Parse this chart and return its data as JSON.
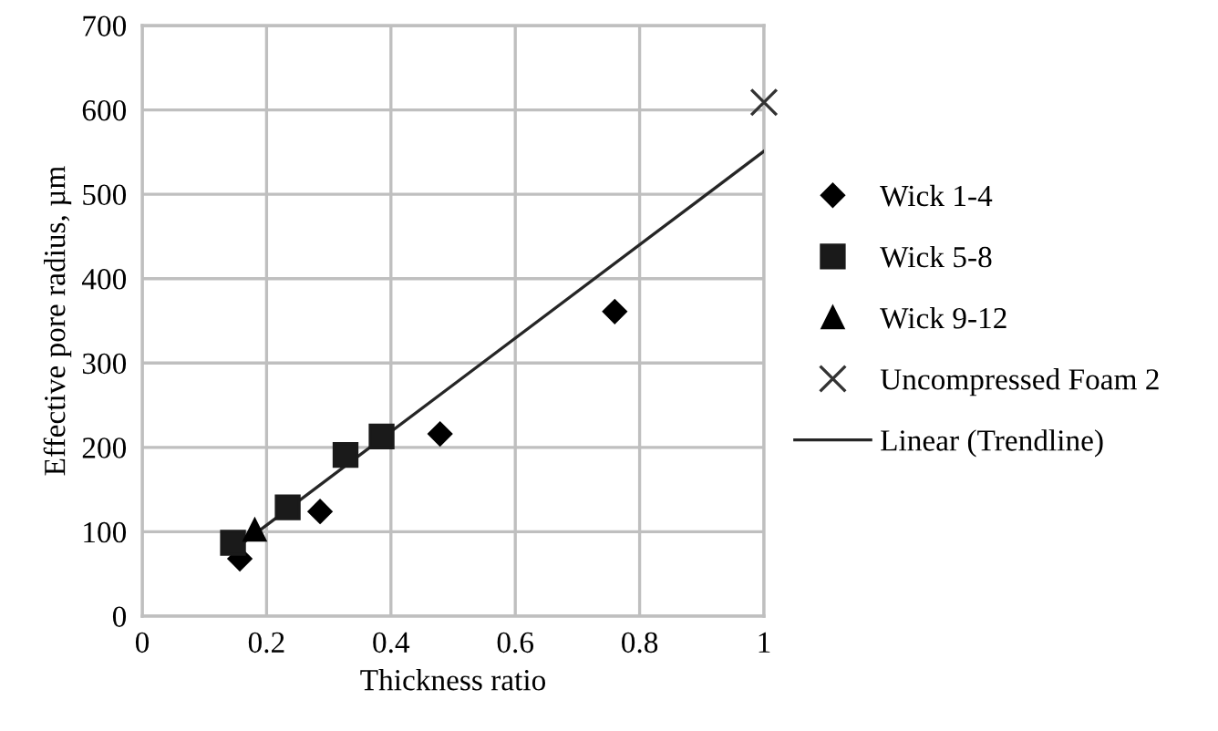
{
  "chart_data": {
    "type": "scatter",
    "xlabel": "Thickness ratio",
    "ylabel": "Effective pore radius, µm",
    "xlim": [
      0,
      1
    ],
    "xticks": [
      0,
      0.2,
      0.4,
      0.6,
      0.8,
      1
    ],
    "ylim": [
      0,
      700
    ],
    "yticks": [
      0,
      100,
      200,
      300,
      400,
      500,
      600,
      700
    ],
    "grid": true,
    "legend": "right",
    "series": [
      {
        "name": "Wick 1-4",
        "color": "#000000",
        "marker": "diamond",
        "x": [
          0.157,
          0.286,
          0.479,
          0.76
        ],
        "values": [
          68,
          124,
          216,
          361
        ]
      },
      {
        "name": "Wick 5-8",
        "color": "#1a1a1a",
        "marker": "square",
        "x": [
          0.146,
          0.234,
          0.327,
          0.385
        ],
        "values": [
          87,
          129,
          191,
          213
        ]
      },
      {
        "name": "Wick 9-12",
        "color": "#000000",
        "marker": "triangle",
        "x": [
          0.181
        ],
        "values": [
          102
        ]
      },
      {
        "name": "Uncompressed Foam 2",
        "color": "#333333",
        "marker": "cross",
        "x": [
          1
        ],
        "values": [
          609
        ]
      },
      {
        "name": "Linear (Trendline)",
        "type": "line",
        "color": "#262626",
        "marker": "none",
        "line_style": "solid",
        "x": [
          0.146,
          1
        ],
        "values": [
          78,
          551
        ]
      }
    ]
  }
}
